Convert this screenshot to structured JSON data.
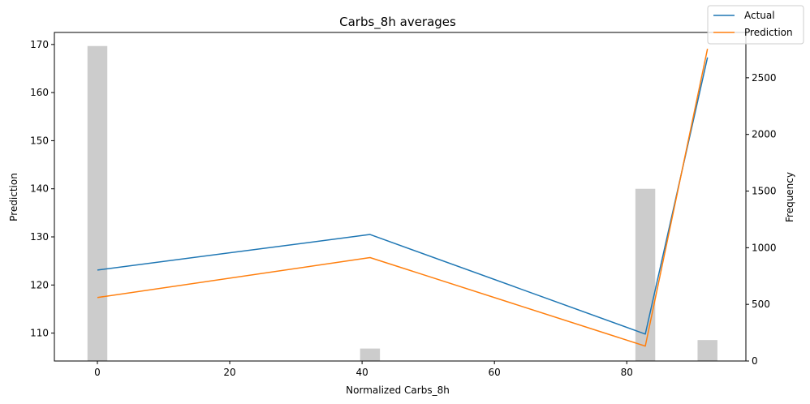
{
  "chart_data": {
    "type": "line",
    "title": "Carbs_8h averages",
    "xlabel": "Normalized Carbs_8h",
    "ylabel": "Prediction",
    "y2label": "Frequency",
    "xlim": [
      -6.5,
      98
    ],
    "ylim": [
      104.2,
      172.5
    ],
    "y2lim": [
      0,
      2900
    ],
    "x_ticks": [
      0,
      20,
      40,
      60,
      80
    ],
    "y_ticks": [
      110,
      120,
      130,
      140,
      150,
      160,
      170
    ],
    "y2_ticks": [
      0,
      500,
      1000,
      1500,
      2000,
      2500
    ],
    "series": [
      {
        "name": "Actual",
        "color": "#1f77b4",
        "x": [
          0,
          41.2,
          82.8,
          92.2
        ],
        "y": [
          123.1,
          130.5,
          109.8,
          167.3
        ]
      },
      {
        "name": "Prediction",
        "color": "#ff7f0e",
        "x": [
          0,
          41.2,
          82.8,
          92.2
        ],
        "y": [
          117.4,
          125.7,
          107.3,
          169.1
        ]
      }
    ],
    "histogram": {
      "color": "#cccccc",
      "bin_width": 3.0,
      "bins": [
        {
          "x": 0,
          "count": 2780
        },
        {
          "x": 41.2,
          "count": 110
        },
        {
          "x": 82.8,
          "count": 1520
        },
        {
          "x": 92.2,
          "count": 185
        }
      ]
    },
    "legend": {
      "position": "top-right",
      "entries": [
        "Actual",
        "Prediction"
      ]
    }
  }
}
